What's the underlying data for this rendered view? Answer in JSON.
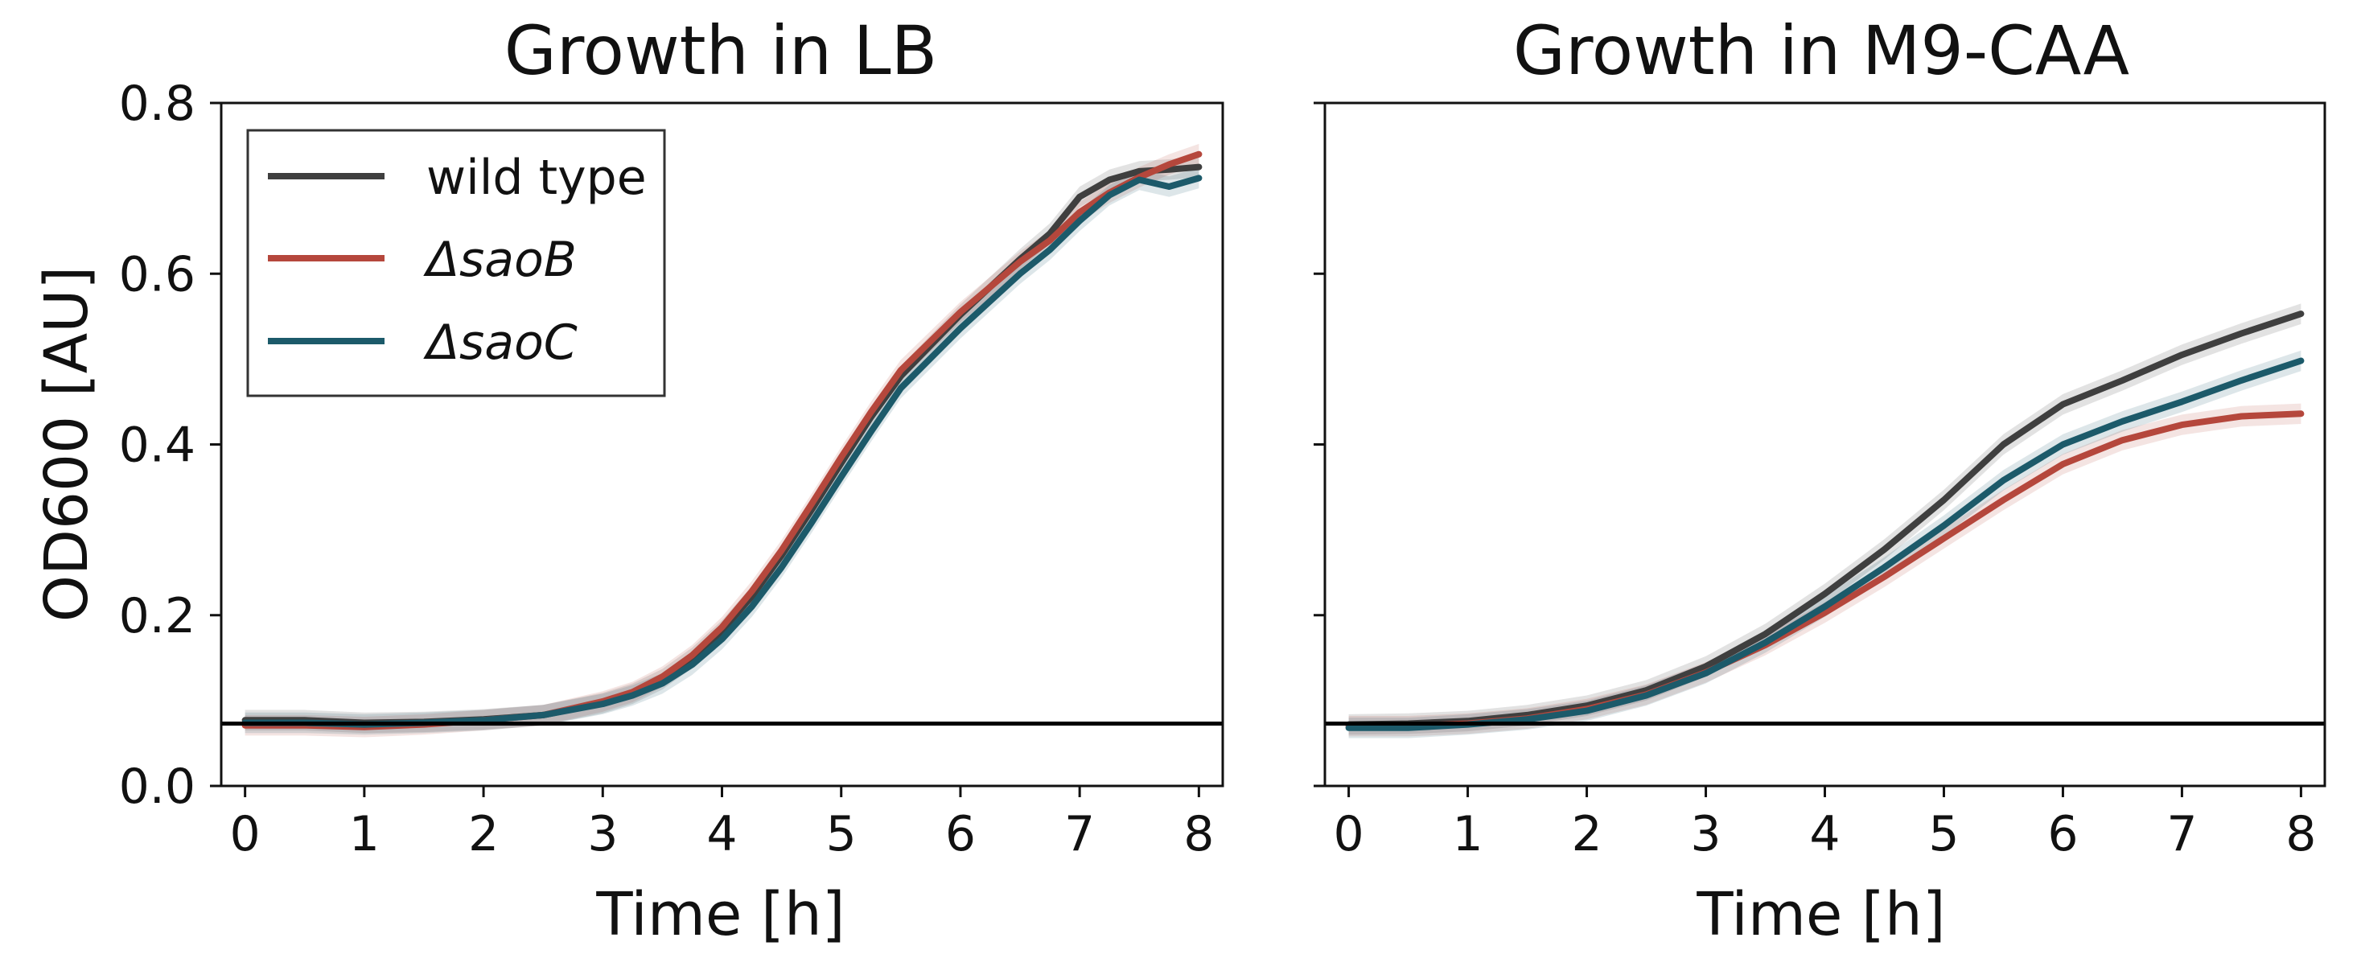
{
  "chart_data": [
    {
      "type": "line",
      "title": "Growth in LB",
      "xlabel": "Time [h]",
      "ylabel": "OD600 [AU]",
      "xlim": [
        -0.2,
        8.2
      ],
      "ylim": [
        0.0,
        0.8
      ],
      "xticks": [
        "0",
        "1",
        "2",
        "3",
        "4",
        "5",
        "6",
        "7",
        "8"
      ],
      "yticks": [
        "0.0",
        "0.2",
        "0.4",
        "0.6",
        "0.8"
      ],
      "grid": false,
      "legend_position": "top-left",
      "shaded_band": true,
      "hline": 0.073,
      "x": [
        0,
        0.5,
        1,
        1.5,
        2,
        2.5,
        3,
        3.25,
        3.5,
        3.75,
        4,
        4.25,
        4.5,
        4.75,
        5,
        5.25,
        5.5,
        6,
        6.5,
        6.75,
        7,
        7.25,
        7.5,
        7.75,
        8
      ],
      "series": [
        {
          "name": "wild type",
          "color": "#3f3f3f",
          "values": [
            0.077,
            0.077,
            0.074,
            0.075,
            0.078,
            0.083,
            0.097,
            0.108,
            0.125,
            0.15,
            0.182,
            0.222,
            0.27,
            0.323,
            0.378,
            0.432,
            0.48,
            0.552,
            0.617,
            0.647,
            0.69,
            0.71,
            0.72,
            0.722,
            0.725
          ]
        },
        {
          "name": "ΔsaoB",
          "color": "#b5473c",
          "values": [
            0.071,
            0.071,
            0.069,
            0.072,
            0.077,
            0.083,
            0.099,
            0.11,
            0.128,
            0.153,
            0.186,
            0.228,
            0.276,
            0.33,
            0.385,
            0.438,
            0.487,
            0.555,
            0.614,
            0.639,
            0.672,
            0.695,
            0.713,
            0.728,
            0.74
          ]
        },
        {
          "name": "ΔsaoC",
          "color": "#1c5a6a",
          "values": [
            0.074,
            0.074,
            0.072,
            0.074,
            0.077,
            0.083,
            0.096,
            0.106,
            0.12,
            0.142,
            0.172,
            0.21,
            0.256,
            0.308,
            0.362,
            0.415,
            0.466,
            0.536,
            0.6,
            0.628,
            0.662,
            0.692,
            0.71,
            0.702,
            0.712
          ]
        }
      ]
    },
    {
      "type": "line",
      "title": "Growth in M9-CAA",
      "xlabel": "Time [h]",
      "ylabel": "",
      "xlim": [
        -0.2,
        8.2
      ],
      "ylim": [
        0.0,
        0.8
      ],
      "xticks": [
        "0",
        "1",
        "2",
        "3",
        "4",
        "5",
        "6",
        "7",
        "8"
      ],
      "yticks": [],
      "grid": false,
      "shaded_band": true,
      "hline": 0.073,
      "x": [
        0,
        0.5,
        1,
        1.5,
        2,
        2.5,
        3,
        3.5,
        4,
        4.5,
        5,
        5.5,
        6,
        6.5,
        7,
        7.5,
        8
      ],
      "series": [
        {
          "name": "wild type",
          "color": "#3f3f3f",
          "values": [
            0.072,
            0.073,
            0.076,
            0.083,
            0.094,
            0.112,
            0.14,
            0.178,
            0.225,
            0.277,
            0.335,
            0.4,
            0.447,
            0.475,
            0.505,
            0.53,
            0.553
          ]
        },
        {
          "name": "ΔsaoB",
          "color": "#b5473c",
          "values": [
            0.07,
            0.07,
            0.073,
            0.079,
            0.09,
            0.107,
            0.133,
            0.165,
            0.203,
            0.245,
            0.29,
            0.335,
            0.377,
            0.405,
            0.423,
            0.433,
            0.436
          ]
        },
        {
          "name": "ΔsaoC",
          "color": "#1c5a6a",
          "values": [
            0.068,
            0.068,
            0.072,
            0.078,
            0.088,
            0.106,
            0.132,
            0.168,
            0.21,
            0.256,
            0.305,
            0.358,
            0.4,
            0.427,
            0.45,
            0.475,
            0.498
          ]
        }
      ]
    }
  ]
}
